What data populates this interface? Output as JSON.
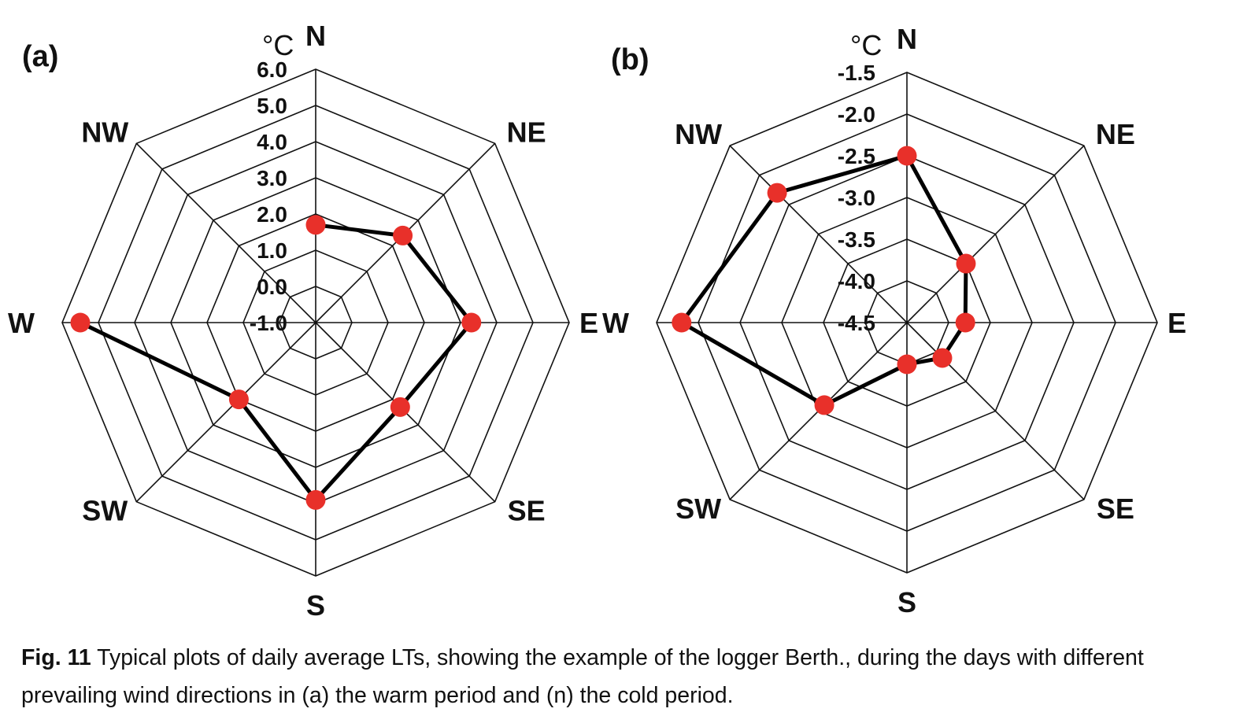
{
  "chart_data": [
    {
      "type": "radar",
      "panel_label": "(a)",
      "unit": "°C",
      "directions": [
        "N",
        "NE",
        "E",
        "SE",
        "S",
        "SW",
        "W",
        "NW"
      ],
      "rlim": [
        -1.0,
        6.0
      ],
      "ticks": [
        "-1.0",
        "0.0",
        "1.0",
        "2.0",
        "3.0",
        "4.0",
        "5.0",
        "6.0"
      ],
      "tick_values": [
        -1,
        0,
        1,
        2,
        3,
        4,
        5,
        6
      ],
      "values": [
        1.7,
        2.4,
        3.3,
        2.3,
        3.9,
        2.0,
        5.5,
        null
      ],
      "closed": false,
      "line_color": "#000000",
      "marker_color": "#e8302a"
    },
    {
      "type": "radar",
      "panel_label": "(b)",
      "unit": "°C",
      "directions": [
        "N",
        "NE",
        "E",
        "SE",
        "S",
        "SW",
        "W",
        "NW"
      ],
      "rlim": [
        -4.5,
        -1.5
      ],
      "ticks": [
        "-4.5",
        "-4.0",
        "-3.5",
        "-3.0",
        "-2.5",
        "-2.0",
        "-1.5"
      ],
      "tick_values": [
        -4.5,
        -4,
        -3.5,
        -3,
        -2.5,
        -2,
        -1.5
      ],
      "values": [
        -2.5,
        -3.5,
        -3.8,
        -3.9,
        -4.0,
        -3.1,
        -1.8,
        -2.3
      ],
      "closed": true,
      "line_color": "#000000",
      "marker_color": "#e8302a"
    }
  ],
  "caption": {
    "label": "Fig. 11",
    "text": " Typical plots of daily average LTs, showing the example of the logger Berth., during the days with different prevailing wind directions in (a) the warm period and (n) the cold period."
  }
}
